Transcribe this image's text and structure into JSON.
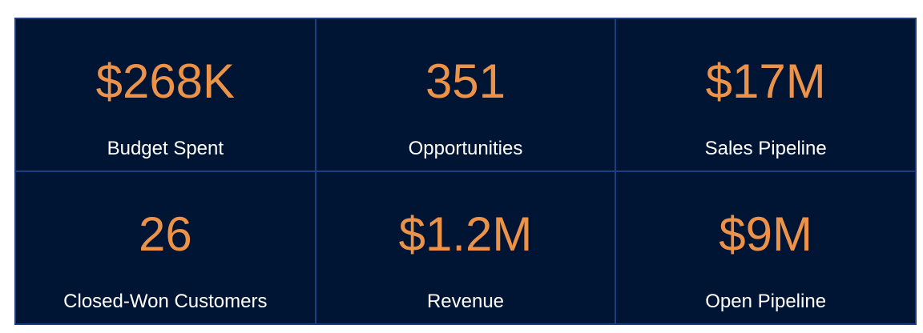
{
  "tiles": [
    {
      "value": "$268K",
      "label": "Budget Spent"
    },
    {
      "value": "351",
      "label": "Opportunities"
    },
    {
      "value": "$17M",
      "label": "Sales Pipeline"
    },
    {
      "value": "26",
      "label": "Closed-Won Customers"
    },
    {
      "value": "$1.2M",
      "label": "Revenue"
    },
    {
      "value": "$9M",
      "label": "Open Pipeline"
    }
  ]
}
